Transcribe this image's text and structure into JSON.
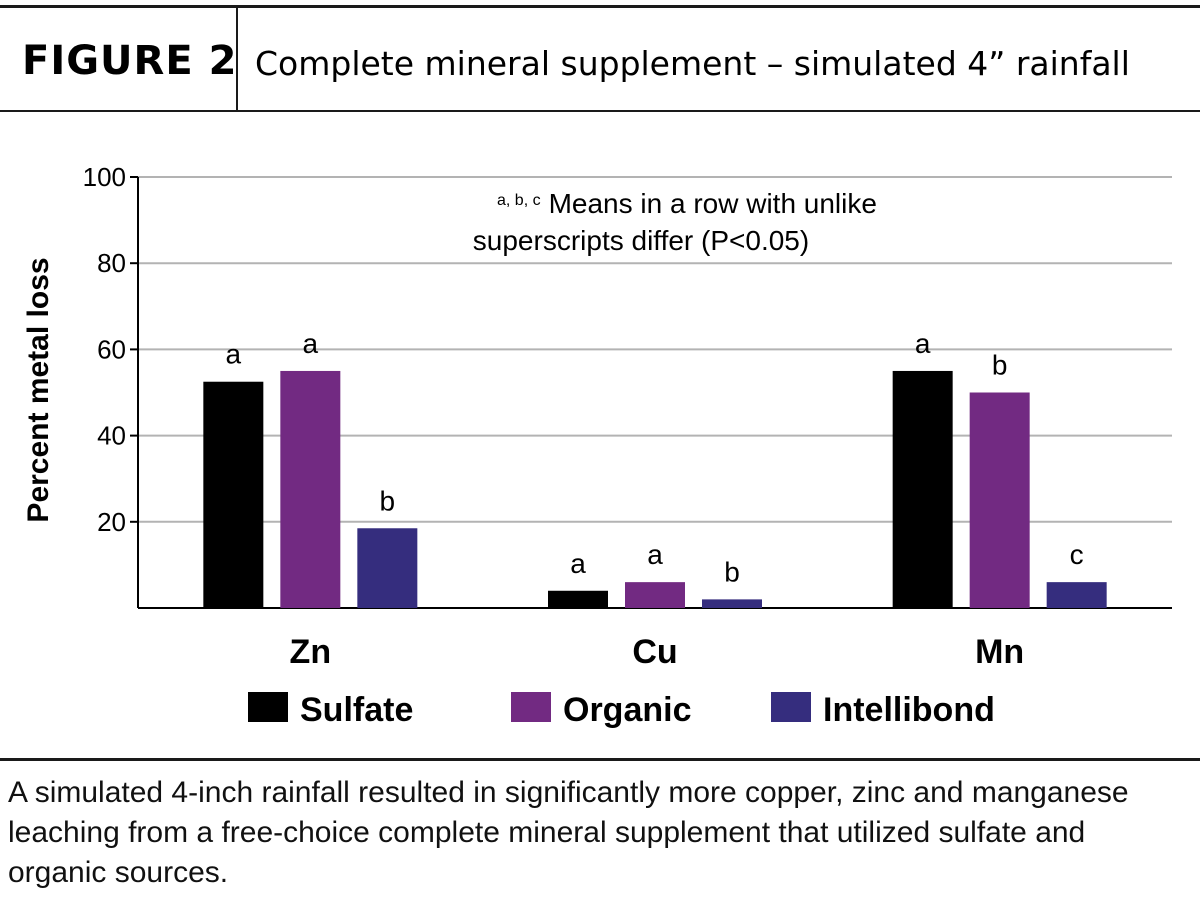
{
  "header": {
    "figure_label": "FIGURE 2",
    "title": "Complete mineral supplement – simulated 4” rainfall"
  },
  "caption": "A simulated 4-inch rainfall resulted in significantly more copper, zinc and manganese leaching from a free-choice complete mineral supplement that utilized sulfate and organic sources.",
  "colors": {
    "Sulfate": "#000000",
    "Organic": "#722a82",
    "Intellibond": "#352d7e",
    "grid": "#b3b3b3"
  },
  "chart_data": {
    "type": "bar",
    "title": "",
    "xlabel": "",
    "ylabel": "Percent metal loss",
    "ylim": [
      0,
      100
    ],
    "yticks": [
      20,
      40,
      60,
      80,
      100
    ],
    "grid": true,
    "legend_position": "bottom",
    "categories": [
      "Zn",
      "Cu",
      "Mn"
    ],
    "series": [
      {
        "name": "Sulfate",
        "values": [
          52.5,
          4,
          55
        ],
        "labels": [
          "a",
          "a",
          "a"
        ]
      },
      {
        "name": "Organic",
        "values": [
          55,
          6,
          50
        ],
        "labels": [
          "a",
          "a",
          "b"
        ]
      },
      {
        "name": "Intellibond",
        "values": [
          18.5,
          2,
          6
        ],
        "labels": [
          "b",
          "b",
          "c"
        ]
      }
    ],
    "annotation": {
      "superscript": "a, b, c",
      "line1": "Means in a row with unlike",
      "line2": "superscripts differ (P<0.05)"
    }
  }
}
